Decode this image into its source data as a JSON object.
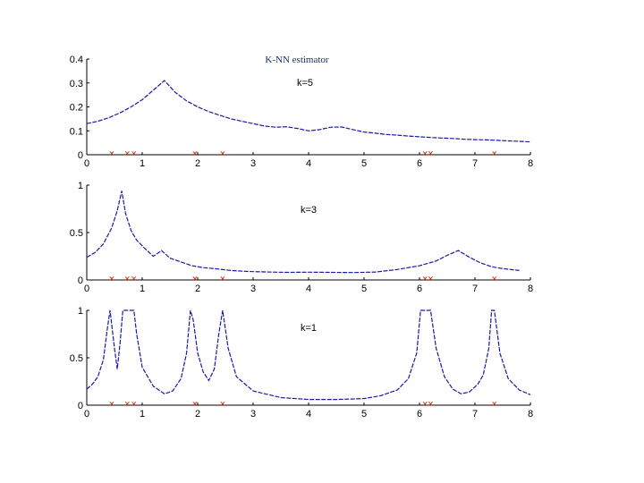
{
  "chart_data": [
    {
      "type": "line",
      "title": "K-NN estimator",
      "annotation": "k=5",
      "xlim": [
        0,
        8
      ],
      "ylim": [
        0,
        0.4
      ],
      "xticks": [
        "0",
        "1",
        "2",
        "3",
        "4",
        "5",
        "6",
        "7",
        "8"
      ],
      "yticks": [
        "0",
        "0.1",
        "0.2",
        "0.3",
        "0.4"
      ],
      "samples": [
        0.45,
        0.73,
        0.85,
        1.95,
        2.45,
        6.1,
        6.2,
        7.35
      ],
      "x": [
        0,
        0.2,
        0.4,
        0.6,
        0.8,
        1.0,
        1.2,
        1.4,
        1.6,
        1.8,
        2.0,
        2.2,
        2.4,
        2.6,
        2.8,
        3.0,
        3.2,
        3.4,
        3.6,
        3.8,
        4.0,
        4.2,
        4.4,
        4.6,
        4.8,
        5.0,
        5.2,
        5.4,
        5.6,
        5.8,
        6.0,
        6.2,
        6.4,
        6.6,
        6.8,
        7.0,
        7.2,
        7.4,
        7.6,
        7.8,
        8.0
      ],
      "y": [
        0.13,
        0.14,
        0.155,
        0.175,
        0.2,
        0.23,
        0.27,
        0.31,
        0.26,
        0.225,
        0.2,
        0.18,
        0.165,
        0.15,
        0.14,
        0.13,
        0.12,
        0.115,
        0.117,
        0.11,
        0.1,
        0.105,
        0.115,
        0.116,
        0.105,
        0.095,
        0.09,
        0.085,
        0.082,
        0.078,
        0.075,
        0.072,
        0.07,
        0.068,
        0.065,
        0.063,
        0.062,
        0.06,
        0.058,
        0.056,
        0.054
      ]
    },
    {
      "type": "line",
      "annotation": "k=3",
      "xlim": [
        0,
        8
      ],
      "ylim": [
        0,
        1
      ],
      "xticks": [
        "0",
        "1",
        "2",
        "3",
        "4",
        "5",
        "6",
        "7",
        "8"
      ],
      "yticks": [
        "0",
        "0.5",
        "1"
      ],
      "samples": [
        0.45,
        0.73,
        0.85,
        1.95,
        2.45,
        6.1,
        6.2,
        7.35
      ],
      "x": [
        0,
        0.15,
        0.3,
        0.45,
        0.55,
        0.63,
        0.7,
        0.8,
        0.9,
        1.05,
        1.2,
        1.35,
        1.5,
        1.7,
        1.9,
        2.1,
        2.3,
        2.6,
        2.9,
        3.2,
        3.6,
        4.0,
        4.4,
        4.8,
        5.2,
        5.6,
        6.0,
        6.3,
        6.5,
        6.7,
        6.9,
        7.1,
        7.3,
        7.5,
        7.8
      ],
      "y": [
        0.24,
        0.29,
        0.38,
        0.55,
        0.73,
        0.94,
        0.7,
        0.52,
        0.42,
        0.33,
        0.25,
        0.31,
        0.23,
        0.19,
        0.15,
        0.13,
        0.12,
        0.1,
        0.09,
        0.085,
        0.08,
        0.082,
        0.08,
        0.078,
        0.083,
        0.11,
        0.15,
        0.2,
        0.26,
        0.31,
        0.24,
        0.18,
        0.14,
        0.12,
        0.1
      ]
    },
    {
      "type": "line",
      "annotation": "k=1",
      "xlim": [
        0,
        8
      ],
      "ylim": [
        0,
        1
      ],
      "xticks": [
        "0",
        "1",
        "2",
        "3",
        "4",
        "5",
        "6",
        "7",
        "8"
      ],
      "yticks": [
        "0",
        "0.5",
        "1"
      ],
      "samples": [
        0.45,
        0.73,
        0.85,
        1.95,
        2.45,
        6.1,
        6.2,
        7.35
      ],
      "x": [
        0,
        0.1,
        0.2,
        0.3,
        0.37,
        0.42,
        0.5,
        0.55,
        0.6,
        0.65,
        0.7,
        0.78,
        0.85,
        0.9,
        1.0,
        1.2,
        1.4,
        1.55,
        1.7,
        1.8,
        1.87,
        1.92,
        2.0,
        2.1,
        2.2,
        2.3,
        2.38,
        2.45,
        2.55,
        2.7,
        3.0,
        3.5,
        4.0,
        4.5,
        5.0,
        5.3,
        5.6,
        5.8,
        5.95,
        6.02,
        6.07,
        6.2,
        6.3,
        6.45,
        6.6,
        6.75,
        6.9,
        7.05,
        7.15,
        7.25,
        7.3,
        7.35,
        7.45,
        7.6,
        7.8,
        8.0
      ],
      "y": [
        0.17,
        0.22,
        0.3,
        0.48,
        0.8,
        1.0,
        0.6,
        0.38,
        0.65,
        1.0,
        1.0,
        1.0,
        1.0,
        0.75,
        0.4,
        0.2,
        0.12,
        0.15,
        0.28,
        0.55,
        1.0,
        0.9,
        0.55,
        0.35,
        0.26,
        0.38,
        0.75,
        1.0,
        0.6,
        0.3,
        0.15,
        0.08,
        0.06,
        0.06,
        0.07,
        0.1,
        0.16,
        0.28,
        0.55,
        1.0,
        1.0,
        1.0,
        0.6,
        0.3,
        0.17,
        0.12,
        0.14,
        0.22,
        0.32,
        0.6,
        1.0,
        1.0,
        0.55,
        0.28,
        0.16,
        0.11
      ]
    }
  ]
}
